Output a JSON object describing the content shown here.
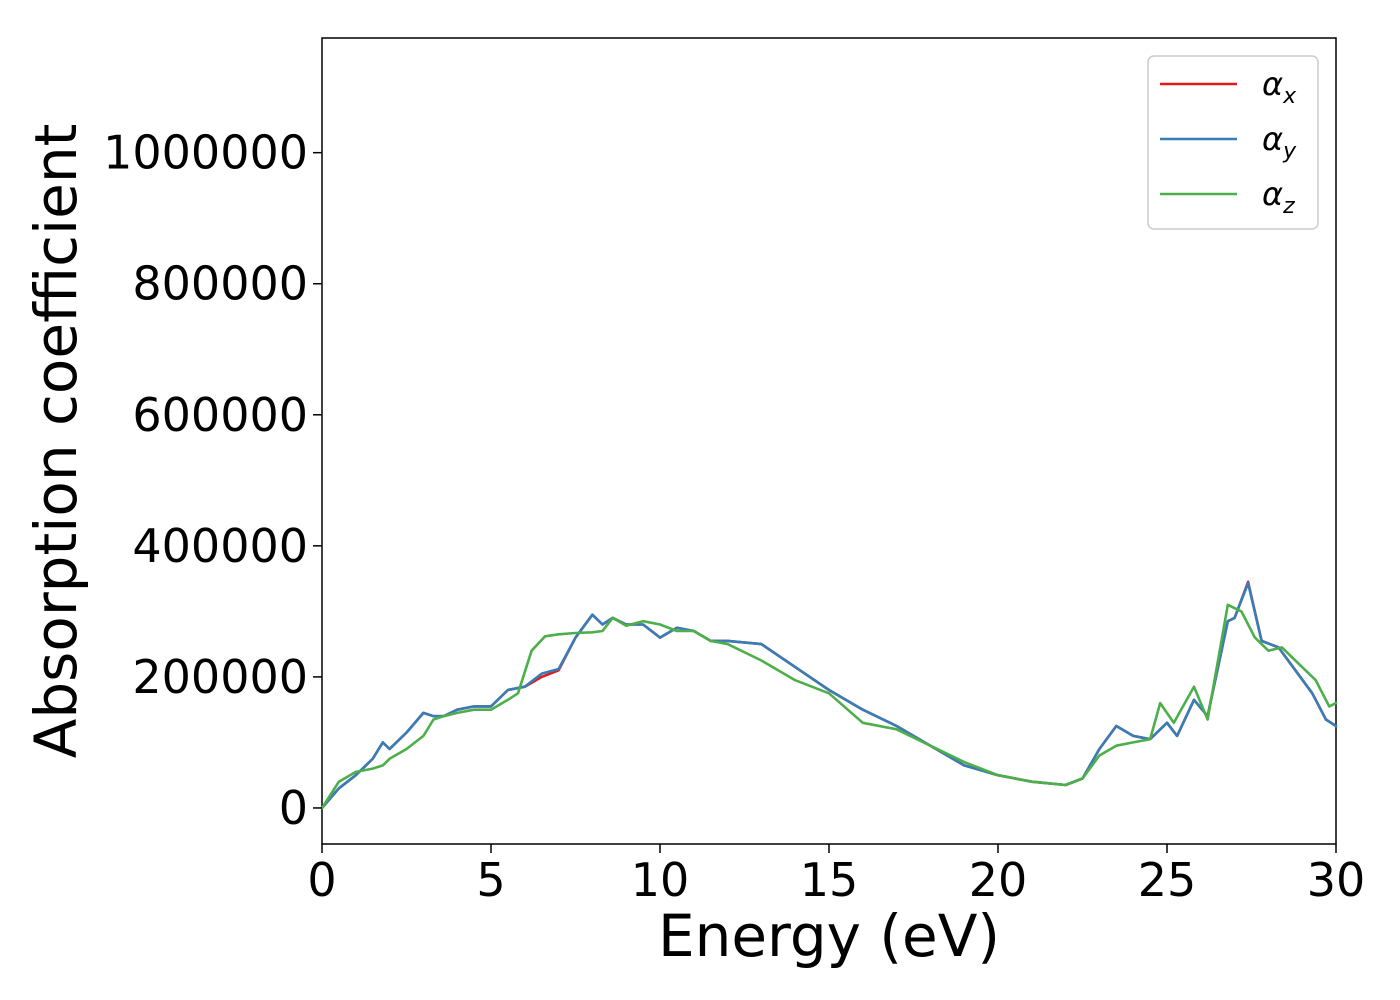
{
  "chart_data": {
    "type": "line",
    "xlabel": "Energy (eV)",
    "ylabel": "Absorption coefficient",
    "xlim": [
      0,
      30
    ],
    "ylim": [
      -55000,
      1175000
    ],
    "xticks": [
      0,
      5,
      10,
      15,
      20,
      25,
      30
    ],
    "yticks": [
      0,
      200000,
      400000,
      600000,
      800000,
      1000000
    ],
    "xtick_labels": [
      "0",
      "5",
      "10",
      "15",
      "20",
      "25",
      "30"
    ],
    "ytick_labels": [
      "0",
      "200000",
      "400000",
      "600000",
      "800000",
      "1000000"
    ],
    "grid": false,
    "legend_position": "top-right",
    "series": [
      {
        "name": "α_x",
        "name_base": "α",
        "name_sub": "x",
        "color": "#e41a1c",
        "x": [
          0,
          0.5,
          1,
          1.5,
          1.8,
          2.0,
          2.5,
          3.0,
          3.3,
          3.6,
          4.0,
          4.5,
          5.0,
          5.5,
          6.0,
          6.5,
          7.0,
          7.5,
          8.0,
          8.3,
          8.6,
          9.0,
          9.5,
          10.0,
          10.5,
          11.0,
          11.5,
          12.0,
          13.0,
          14.0,
          15.0,
          16.0,
          17.0,
          18.0,
          19.0,
          20.0,
          21.0,
          22.0,
          22.5,
          23.0,
          23.5,
          24.0,
          24.5,
          25.0,
          25.3,
          25.8,
          26.2,
          26.8,
          27.0,
          27.4,
          27.8,
          28.3,
          28.8,
          29.3,
          29.7,
          30.0
        ],
        "y": [
          0,
          30000,
          50000,
          75000,
          100000,
          90000,
          115000,
          145000,
          140000,
          140000,
          150000,
          155000,
          155000,
          180000,
          185000,
          200000,
          210000,
          260000,
          295000,
          280000,
          290000,
          280000,
          280000,
          260000,
          275000,
          270000,
          255000,
          255000,
          250000,
          215000,
          180000,
          150000,
          125000,
          95000,
          65000,
          50000,
          40000,
          35000,
          45000,
          90000,
          125000,
          110000,
          105000,
          130000,
          110000,
          165000,
          140000,
          285000,
          290000,
          345000,
          255000,
          245000,
          210000,
          175000,
          135000,
          125000
        ]
      },
      {
        "name": "α_y",
        "name_base": "α",
        "name_sub": "y",
        "color": "#377eb8",
        "x": [
          0,
          0.5,
          1,
          1.5,
          1.8,
          2.0,
          2.5,
          3.0,
          3.3,
          3.6,
          4.0,
          4.5,
          5.0,
          5.5,
          6.0,
          6.5,
          7.0,
          7.5,
          8.0,
          8.3,
          8.6,
          9.0,
          9.5,
          10.0,
          10.5,
          11.0,
          11.5,
          12.0,
          13.0,
          14.0,
          15.0,
          16.0,
          17.0,
          18.0,
          19.0,
          20.0,
          21.0,
          22.0,
          22.5,
          23.0,
          23.5,
          24.0,
          24.5,
          25.0,
          25.3,
          25.8,
          26.2,
          26.8,
          27.0,
          27.4,
          27.8,
          28.3,
          28.8,
          29.3,
          29.7,
          30.0
        ],
        "y": [
          0,
          30000,
          50000,
          75000,
          100000,
          90000,
          115000,
          145000,
          140000,
          140000,
          150000,
          155000,
          155000,
          180000,
          185000,
          205000,
          212000,
          260000,
          295000,
          280000,
          290000,
          280000,
          280000,
          260000,
          275000,
          270000,
          255000,
          255000,
          250000,
          215000,
          180000,
          150000,
          125000,
          95000,
          65000,
          50000,
          40000,
          35000,
          45000,
          90000,
          125000,
          110000,
          105000,
          130000,
          110000,
          165000,
          140000,
          285000,
          290000,
          343000,
          255000,
          245000,
          210000,
          175000,
          135000,
          125000
        ]
      },
      {
        "name": "α_z",
        "name_base": "α",
        "name_sub": "z",
        "color": "#4daf4a",
        "x": [
          0,
          0.5,
          1,
          1.5,
          1.8,
          2.0,
          2.5,
          3.0,
          3.3,
          3.6,
          4.0,
          4.5,
          5.0,
          5.5,
          5.8,
          6.2,
          6.6,
          7.0,
          7.5,
          8.0,
          8.3,
          8.6,
          9.0,
          9.5,
          10.0,
          10.5,
          11.0,
          11.5,
          12.0,
          13.0,
          14.0,
          15.0,
          16.0,
          17.0,
          18.0,
          19.0,
          20.0,
          21.0,
          22.0,
          22.5,
          23.0,
          23.5,
          24.0,
          24.5,
          24.8,
          25.2,
          25.8,
          26.2,
          26.8,
          27.2,
          27.6,
          28.0,
          28.4,
          28.9,
          29.4,
          29.8,
          30.0
        ],
        "y": [
          0,
          40000,
          55000,
          60000,
          65000,
          75000,
          90000,
          110000,
          135000,
          140000,
          145000,
          150000,
          150000,
          165000,
          175000,
          240000,
          262000,
          265000,
          267000,
          268000,
          270000,
          290000,
          278000,
          285000,
          280000,
          270000,
          270000,
          255000,
          250000,
          225000,
          195000,
          175000,
          130000,
          120000,
          95000,
          70000,
          50000,
          40000,
          35000,
          45000,
          80000,
          95000,
          100000,
          105000,
          160000,
          130000,
          185000,
          135000,
          310000,
          300000,
          260000,
          240000,
          245000,
          220000,
          195000,
          155000,
          160000
        ]
      }
    ]
  }
}
